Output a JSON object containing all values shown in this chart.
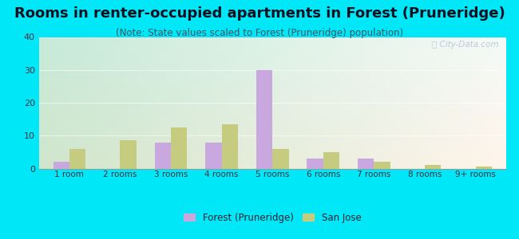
{
  "title": "Rooms in renter-occupied apartments in Forest (Pruneridge)",
  "subtitle": "(Note: State values scaled to Forest (Pruneridge) population)",
  "categories": [
    "1 room",
    "2 rooms",
    "3 rooms",
    "4 rooms",
    "5 rooms",
    "6 rooms",
    "7 rooms",
    "8 rooms",
    "9+ rooms"
  ],
  "forest_values": [
    2,
    0,
    8,
    8,
    30,
    3,
    3,
    0,
    0
  ],
  "sanjose_values": [
    6,
    8.5,
    12.5,
    13.5,
    6,
    5,
    2,
    1.2,
    0.7
  ],
  "forest_color": "#c9a8df",
  "sanjose_color": "#c5cc80",
  "ylim": [
    0,
    40
  ],
  "yticks": [
    0,
    10,
    20,
    30,
    40
  ],
  "background_outer": "#00e8f8",
  "title_fontsize": 13,
  "subtitle_fontsize": 8.5,
  "legend_labels": [
    "Forest (Pruneridge)",
    "San Jose"
  ],
  "watermark": "Ⓢ City-Data.com"
}
